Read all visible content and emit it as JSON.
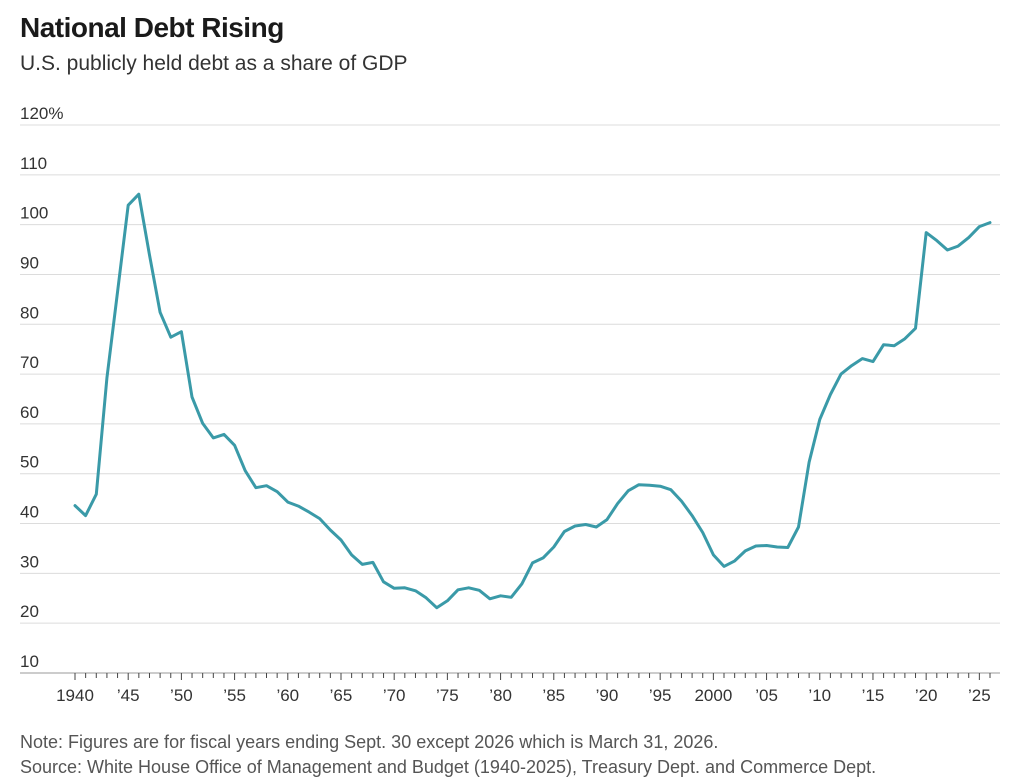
{
  "chart_data": {
    "type": "line",
    "title": "National Debt Rising",
    "subtitle": "U.S. publicly held debt as a share of GDP",
    "xlabel": "",
    "ylabel": "",
    "ylim": [
      10,
      120
    ],
    "xlim": [
      1940,
      2026
    ],
    "yticks": [
      {
        "value": 120,
        "label": "120%"
      },
      {
        "value": 110,
        "label": "110"
      },
      {
        "value": 100,
        "label": "100"
      },
      {
        "value": 90,
        "label": "90"
      },
      {
        "value": 80,
        "label": "80"
      },
      {
        "value": 70,
        "label": "70"
      },
      {
        "value": 60,
        "label": "60"
      },
      {
        "value": 50,
        "label": "50"
      },
      {
        "value": 40,
        "label": "40"
      },
      {
        "value": 30,
        "label": "30"
      },
      {
        "value": 20,
        "label": "20"
      },
      {
        "value": 10,
        "label": "10"
      }
    ],
    "xticks": [
      {
        "value": 1940,
        "label": "1940"
      },
      {
        "value": 1945,
        "label": "’45"
      },
      {
        "value": 1950,
        "label": "’50"
      },
      {
        "value": 1955,
        "label": "’55"
      },
      {
        "value": 1960,
        "label": "’60"
      },
      {
        "value": 1965,
        "label": "’65"
      },
      {
        "value": 1970,
        "label": "’70"
      },
      {
        "value": 1975,
        "label": "’75"
      },
      {
        "value": 1980,
        "label": "’80"
      },
      {
        "value": 1985,
        "label": "’85"
      },
      {
        "value": 1990,
        "label": "’90"
      },
      {
        "value": 1995,
        "label": "’95"
      },
      {
        "value": 2000,
        "label": "2000"
      },
      {
        "value": 2005,
        "label": "’05"
      },
      {
        "value": 2010,
        "label": "’10"
      },
      {
        "value": 2015,
        "label": "’15"
      },
      {
        "value": 2020,
        "label": "’20"
      },
      {
        "value": 2025,
        "label": "’25"
      }
    ],
    "grid": true,
    "line_color": "#3a9aa8",
    "x": [
      1940,
      1941,
      1942,
      1943,
      1944,
      1945,
      1946,
      1947,
      1948,
      1949,
      1950,
      1951,
      1952,
      1953,
      1954,
      1955,
      1956,
      1957,
      1958,
      1959,
      1960,
      1961,
      1962,
      1963,
      1964,
      1965,
      1966,
      1967,
      1968,
      1969,
      1970,
      1971,
      1972,
      1973,
      1974,
      1975,
      1976,
      1977,
      1978,
      1979,
      1980,
      1981,
      1982,
      1983,
      1984,
      1985,
      1986,
      1987,
      1988,
      1989,
      1990,
      1991,
      1992,
      1993,
      1994,
      1995,
      1996,
      1997,
      1998,
      1999,
      2000,
      2001,
      2002,
      2003,
      2004,
      2005,
      2006,
      2007,
      2008,
      2009,
      2010,
      2011,
      2012,
      2013,
      2014,
      2015,
      2016,
      2017,
      2018,
      2019,
      2020,
      2021,
      2022,
      2023,
      2024,
      2025,
      2026
    ],
    "values": [
      43.6,
      41.6,
      45.9,
      69.2,
      86.6,
      103.9,
      106.1,
      93.9,
      82.4,
      77.4,
      78.5,
      65.4,
      60.1,
      57.2,
      57.9,
      55.7,
      50.6,
      47.2,
      47.6,
      46.4,
      44.3,
      43.5,
      42.3,
      41.0,
      38.7,
      36.7,
      33.7,
      31.8,
      32.2,
      28.3,
      27.0,
      27.1,
      26.5,
      25.1,
      23.1,
      24.5,
      26.7,
      27.1,
      26.6,
      24.9,
      25.5,
      25.2,
      27.9,
      32.1,
      33.1,
      35.3,
      38.4,
      39.5,
      39.8,
      39.3,
      40.8,
      44.0,
      46.6,
      47.8,
      47.7,
      47.5,
      46.8,
      44.5,
      41.6,
      38.2,
      33.7,
      31.4,
      32.5,
      34.5,
      35.5,
      35.6,
      35.3,
      35.2,
      39.3,
      52.3,
      60.9,
      65.9,
      70.0,
      71.7,
      73.1,
      72.5,
      75.9,
      75.7,
      77.1,
      79.2,
      98.4,
      96.8,
      94.9,
      95.7,
      97.4,
      99.6,
      100.4
    ]
  },
  "footer": {
    "note": "Note: Figures are for fiscal years ending Sept. 30 except 2026 which is March 31, 2026.",
    "source": "Source: White House Office of Management and Budget (1940-2025), Treasury Dept. and Commerce Dept."
  }
}
